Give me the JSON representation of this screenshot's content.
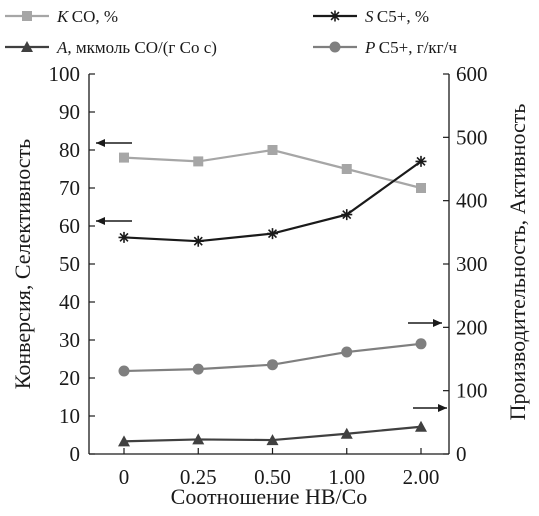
{
  "chart_data": {
    "type": "line",
    "categories": [
      "0",
      "0.25",
      "0.50",
      "1.00",
      "2.00"
    ],
    "xlabel": "Соотношение HB/Co",
    "ylabel_left": "Конверсия, Селективность",
    "ylabel_right": "Производительность, Активность",
    "ylim_left": [
      0,
      100
    ],
    "ylim_right": [
      0,
      600
    ],
    "yticks_left": [
      0,
      10,
      20,
      30,
      40,
      50,
      60,
      70,
      80,
      90,
      100
    ],
    "yticks_right": [
      0,
      100,
      200,
      300,
      400,
      500,
      600
    ],
    "grid": false,
    "legend_position": "top",
    "series": [
      {
        "name": "K CO, %",
        "symbol": "K",
        "label": "CO, %",
        "axis": "left",
        "marker": "square",
        "color": "#a6a6a6",
        "values": [
          78,
          77,
          80,
          75,
          70
        ]
      },
      {
        "name": "S C5+, %",
        "symbol": "S",
        "label": "C5+, %",
        "axis": "left",
        "marker": "star",
        "color": "#1a1a1a",
        "values": [
          57,
          56,
          58,
          63,
          77
        ]
      },
      {
        "name": "A, мкмоль CO/(г Co с)",
        "symbol": "A",
        "label": ", мкмоль CO/(г Co с)",
        "axis": "right",
        "marker": "triangle",
        "color": "#404040",
        "values": [
          20,
          23,
          22,
          32,
          43
        ]
      },
      {
        "name": "P C5+, г/кг/ч",
        "symbol": "P",
        "label": "C5+, г/кг/ч",
        "axis": "right",
        "marker": "circle",
        "color": "#7f7f7f",
        "values": [
          131,
          134,
          141,
          161,
          174
        ]
      }
    ]
  }
}
